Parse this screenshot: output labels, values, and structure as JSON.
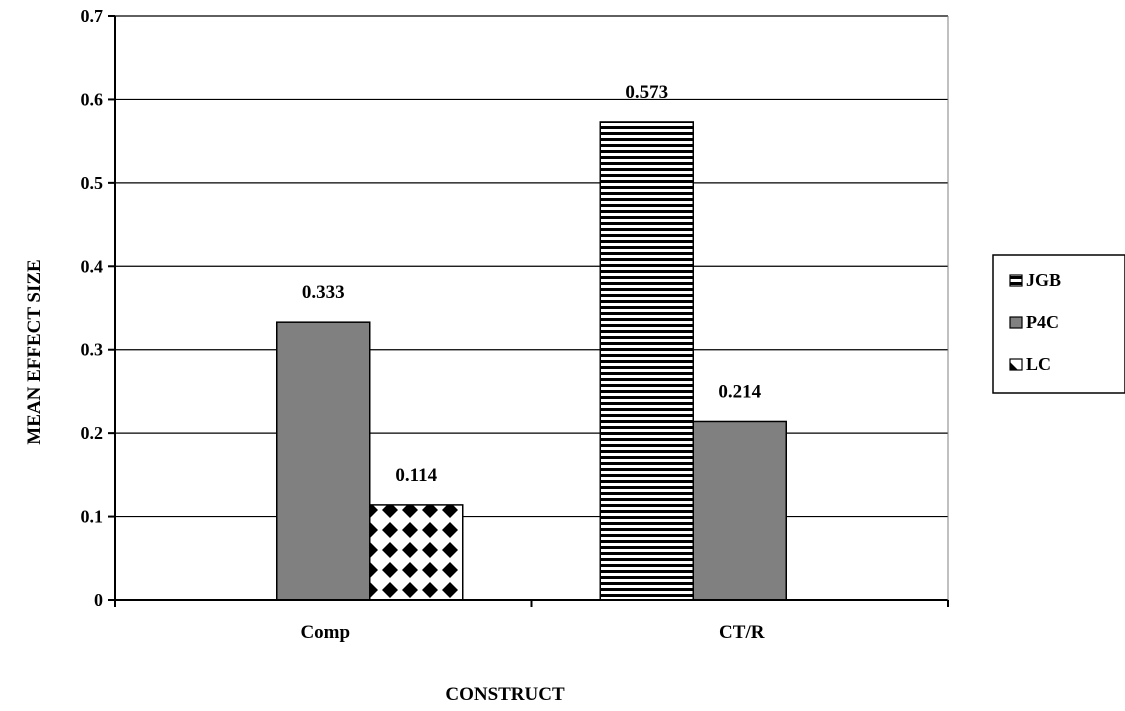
{
  "chart_data": {
    "type": "bar",
    "categories": [
      "Comp",
      "CT/R"
    ],
    "series": [
      {
        "name": "JGB",
        "values": [
          null,
          0.573
        ],
        "pattern": "horizontal-stripes"
      },
      {
        "name": "P4C",
        "values": [
          0.333,
          0.214
        ],
        "color": "#808080"
      },
      {
        "name": "LC",
        "values": [
          0.114,
          null
        ],
        "pattern": "checkerboard-diamond"
      }
    ],
    "data_labels": [
      {
        "series": "P4C",
        "category": "Comp",
        "text": "0.333"
      },
      {
        "series": "LC",
        "category": "Comp",
        "text": "0.114"
      },
      {
        "series": "JGB",
        "category": "CT/R",
        "text": "0.573"
      },
      {
        "series": "P4C",
        "category": "CT/R",
        "text": "0.214"
      }
    ],
    "y_ticks": [
      "0",
      "0.1",
      "0.2",
      "0.3",
      "0.4",
      "0.5",
      "0.6",
      "0.7"
    ],
    "ylim": [
      0,
      0.7
    ],
    "xlabel": "CONSTRUCT",
    "ylabel": "MEAN EFFECT SIZE",
    "grid": true,
    "legend_position": "right"
  }
}
